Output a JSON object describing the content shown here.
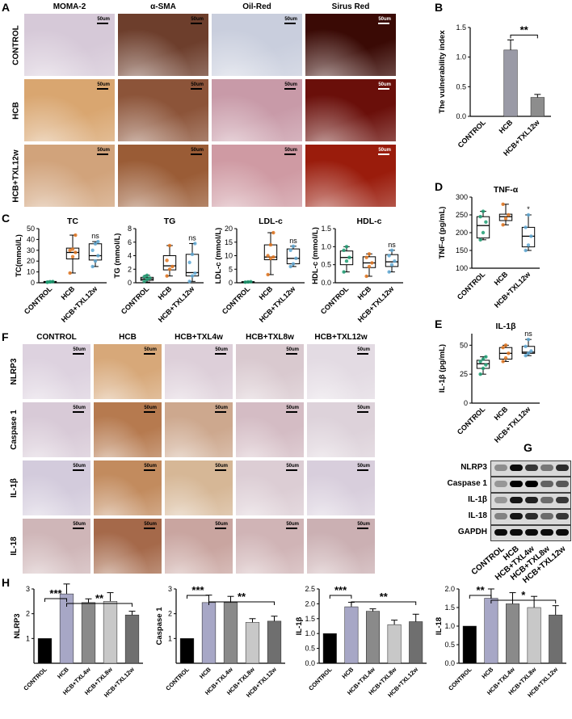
{
  "panels": {
    "A": {
      "label": "A",
      "columns": [
        "MOMA-2",
        "α-SMA",
        "Oil-Red",
        "Sirus Red"
      ],
      "rows": [
        "CONTROL",
        "HCB",
        "HCB+TXL12w"
      ],
      "scale_bar": "50um",
      "tile_colors": [
        [
          "#d6c9d8",
          "#6d3e2c",
          "#c9cedd",
          "#3a0a05"
        ],
        [
          "#d9a670",
          "#8c5439",
          "#c89aa8",
          "#6a0f0a"
        ],
        [
          "#d1a37b",
          "#9a5c36",
          "#cf9aa3",
          "#9a1c0c"
        ]
      ]
    },
    "F": {
      "label": "F",
      "columns": [
        "CONTROL",
        "HCB",
        "HCB+TXL4w",
        "HCB+TXL8w",
        "HCB+TXL12w"
      ],
      "rows": [
        "NLRP3",
        "Caspase 1",
        "IL-1β",
        "IL-18"
      ],
      "scale_bar": "50um",
      "tile_colors": [
        [
          "#ddd2df",
          "#d7a879",
          "#ddcfd9",
          "#d9c9cf",
          "#e3dbe3"
        ],
        [
          "#d8cad7",
          "#b67a4f",
          "#cda88e",
          "#d4bcc4",
          "#ddd2da"
        ],
        [
          "#d3cbdc",
          "#c28b5e",
          "#d6b796",
          "#dccdd4",
          "#d8cedc"
        ],
        [
          "#cfb6b8",
          "#a5694a",
          "#c9a5a0",
          "#d0b4b6",
          "#cbb0b3"
        ]
      ]
    },
    "G": {
      "label": "G",
      "bands": [
        "NLRP3",
        "Caspase 1",
        "IL-1β",
        "IL-18",
        "GAPDH"
      ],
      "lanes": [
        "CONTROL",
        "HCB",
        "HCB+TXL4w",
        "HCB+TXL8w",
        "HCB+TXL12w"
      ],
      "intensity": [
        [
          0.35,
          0.95,
          0.75,
          0.45,
          0.8
        ],
        [
          0.3,
          1.0,
          1.0,
          0.55,
          0.6
        ],
        [
          0.3,
          0.9,
          0.85,
          0.5,
          0.75
        ],
        [
          0.4,
          0.9,
          0.8,
          0.5,
          0.75
        ],
        [
          0.95,
          0.95,
          0.95,
          0.95,
          0.95
        ]
      ]
    },
    "B": {
      "label": "B"
    },
    "C": {
      "label": "C"
    },
    "D": {
      "label": "D"
    },
    "E": {
      "label": "E"
    },
    "H": {
      "label": "H"
    }
  },
  "colors": {
    "control": "#1f9e73",
    "hcb": "#e0741f",
    "txl": "#5fa8d3",
    "gray_bar": "#a8a8b8",
    "gray_bar_dark": "#8d8d8d",
    "box_mid": "#ffffff",
    "sig": "#000000"
  },
  "chart_data": [
    {
      "id": "B",
      "type": "bar",
      "categories": [
        "CONTROL",
        "HCB",
        "HCB+TXL12w"
      ],
      "values": [
        0,
        1.12,
        0.32
      ],
      "errors": [
        0,
        0.17,
        0.05
      ],
      "ylabel": "The vulnerability index",
      "ylim": [
        0,
        1.5
      ],
      "yticks": [
        0.0,
        0.5,
        1.0,
        1.5
      ],
      "significance": [
        {
          "from": 1,
          "to": 2,
          "label": "**"
        }
      ],
      "grid": false
    },
    {
      "id": "C-TC",
      "type": "box",
      "title": "TC",
      "categories": [
        "CONTROL",
        "HCB",
        "HCB+TXL12w"
      ],
      "boxes": [
        {
          "min": 0.2,
          "q1": 0.4,
          "median": 0.8,
          "q3": 1.2,
          "max": 1.6
        },
        {
          "min": 9,
          "q1": 22,
          "median": 28,
          "q3": 32,
          "max": 44
        },
        {
          "min": 15,
          "q1": 21,
          "median": 25,
          "q3": 36,
          "max": 38
        }
      ],
      "points": [
        [
          0.5,
          0.9,
          1.1,
          0.4,
          0.8
        ],
        [
          9,
          24,
          28,
          30,
          31,
          44
        ],
        [
          15,
          20,
          25,
          30,
          36,
          38
        ]
      ],
      "ylabel": "TC(mmol/L)",
      "ylim": [
        0,
        50
      ],
      "yticks": [
        0,
        10,
        20,
        30,
        40,
        50
      ],
      "significance": [
        {
          "over": 2,
          "label": "ns"
        }
      ]
    },
    {
      "id": "C-TG",
      "type": "box",
      "title": "TG",
      "categories": [
        "CONTROL",
        "HCB",
        "HCB+TXL12w"
      ],
      "boxes": [
        {
          "min": 0.1,
          "q1": 0.35,
          "median": 0.55,
          "q3": 0.8,
          "max": 1.1
        },
        {
          "min": 1.0,
          "q1": 1.9,
          "median": 2.5,
          "q3": 4.0,
          "max": 5.5
        },
        {
          "min": 0.2,
          "q1": 1.0,
          "median": 1.5,
          "q3": 4.2,
          "max": 5.8
        }
      ],
      "points": [
        [
          0.2,
          0.5,
          0.7,
          0.9,
          1.1
        ],
        [
          1.0,
          2.0,
          2.4,
          3.3,
          5.5
        ],
        [
          0.2,
          1.0,
          1.4,
          3.0,
          4.2,
          5.8
        ]
      ],
      "ylabel": "TG  (mmol/L)",
      "ylim": [
        0,
        8
      ],
      "yticks": [
        0,
        2,
        4,
        6,
        8
      ],
      "significance": [
        {
          "over": 2,
          "label": "ns"
        }
      ]
    },
    {
      "id": "C-LDL",
      "type": "box",
      "title": "LDL-c",
      "categories": [
        "CONTROL",
        "HCB",
        "HCB+TXL12w"
      ],
      "boxes": [
        {
          "min": 0.1,
          "q1": 0.2,
          "median": 0.3,
          "q3": 0.4,
          "max": 0.5
        },
        {
          "min": 3,
          "q1": 8.5,
          "median": 9.5,
          "q3": 14,
          "max": 18.5
        },
        {
          "min": 6,
          "q1": 7,
          "median": 9,
          "q3": 12.5,
          "max": 13.5
        }
      ],
      "points": [
        [
          0.2,
          0.3,
          0.4
        ],
        [
          3,
          9,
          9.5,
          10,
          14,
          18.5
        ],
        [
          6,
          7,
          9,
          12,
          13.5
        ]
      ],
      "ylabel": "LDL-c  (mmol/L)",
      "ylim": [
        0,
        20
      ],
      "yticks": [
        0,
        5,
        10,
        15,
        20
      ],
      "significance": [
        {
          "over": 2,
          "label": "ns"
        }
      ]
    },
    {
      "id": "C-HDL",
      "type": "box",
      "title": "HDL-c",
      "categories": [
        "CONTROL",
        "HCB",
        "HCB+TXL12w"
      ],
      "boxes": [
        {
          "min": 0.3,
          "q1": 0.5,
          "median": 0.7,
          "q3": 0.88,
          "max": 1.0
        },
        {
          "min": 0.18,
          "q1": 0.42,
          "median": 0.55,
          "q3": 0.72,
          "max": 0.8
        },
        {
          "min": 0.3,
          "q1": 0.45,
          "median": 0.58,
          "q3": 0.78,
          "max": 0.9
        }
      ],
      "points": [
        [
          0.3,
          0.6,
          0.7,
          0.9,
          1.0
        ],
        [
          0.18,
          0.45,
          0.55,
          0.7,
          0.8
        ],
        [
          0.3,
          0.5,
          0.6,
          0.75,
          0.9
        ]
      ],
      "ylabel": "HDL-c  (mmol/L)",
      "ylim": [
        0,
        1.5
      ],
      "yticks": [
        0.0,
        0.5,
        1.0,
        1.5
      ],
      "significance": [
        {
          "over": 2,
          "label": "ns"
        }
      ]
    },
    {
      "id": "D",
      "type": "box",
      "title": "TNF-α",
      "categories": [
        "CONTROL",
        "HCB",
        "HCB+TXL12w"
      ],
      "boxes": [
        {
          "min": 180,
          "q1": 185,
          "median": 220,
          "q3": 245,
          "max": 260
        },
        {
          "min": 222,
          "q1": 234,
          "median": 245,
          "q3": 252,
          "max": 280
        },
        {
          "min": 150,
          "q1": 160,
          "median": 190,
          "q3": 215,
          "max": 250
        }
      ],
      "points": [
        [
          180,
          200,
          230,
          245,
          260
        ],
        [
          222,
          240,
          250,
          280
        ],
        [
          150,
          165,
          190,
          215,
          250
        ]
      ],
      "ylabel": "TNF-α  (pg/mL)",
      "ylim": [
        100,
        300
      ],
      "yticks": [
        100,
        150,
        200,
        250,
        300
      ],
      "significance": [
        {
          "over": 2,
          "label": "*"
        }
      ]
    },
    {
      "id": "E",
      "type": "box",
      "title": "IL-1β",
      "categories": [
        "CONTROL",
        "HCB",
        "HCB+TXL12w"
      ],
      "boxes": [
        {
          "min": 25,
          "q1": 30,
          "median": 34,
          "q3": 37,
          "max": 40
        },
        {
          "min": 36,
          "q1": 38,
          "median": 43,
          "q3": 48,
          "max": 50
        },
        {
          "min": 41,
          "q1": 43,
          "median": 44,
          "q3": 49,
          "max": 55
        }
      ],
      "points": [
        [
          25,
          30,
          33,
          36,
          38,
          40
        ],
        [
          36,
          39,
          43,
          48,
          50
        ],
        [
          41,
          43,
          45,
          49,
          55
        ]
      ],
      "ylabel": "IL-1β  (pg/mL)",
      "ylim": [
        0,
        60
      ],
      "yticks": [
        0,
        25,
        50
      ],
      "significance": [
        {
          "over": 2,
          "label": "ns"
        }
      ]
    },
    {
      "id": "H-NLRP3",
      "type": "bar",
      "categories": [
        "CONTROL",
        "HCB",
        "HCB+TXL4w",
        "HCB+TXL8w",
        "HCB+TXL12w"
      ],
      "values": [
        1.0,
        2.8,
        2.45,
        2.5,
        1.95
      ],
      "errors": [
        0,
        0.4,
        0.15,
        0.35,
        0.15
      ],
      "ylabel": "NLRP3",
      "ylim": [
        0,
        3
      ],
      "yticks": [
        1,
        2,
        3
      ],
      "significance": [
        {
          "from": 0,
          "to": 1,
          "label": "***"
        },
        {
          "from": 1,
          "to": 4,
          "label": "**"
        }
      ]
    },
    {
      "id": "H-Caspase1",
      "type": "bar",
      "categories": [
        "CONTROL",
        "HCB",
        "HCB+TXL4w",
        "HCB+TXL8w",
        "HCB+TXL12w"
      ],
      "values": [
        1.0,
        2.45,
        2.45,
        1.65,
        1.7
      ],
      "errors": [
        0,
        0.3,
        0.25,
        0.15,
        0.2
      ],
      "ylabel": "Caspase 1",
      "ylim": [
        0,
        3
      ],
      "yticks": [
        1,
        2,
        3
      ],
      "significance": [
        {
          "from": 0,
          "to": 1,
          "label": "***"
        },
        {
          "from": 1,
          "to": 4,
          "label": "**"
        }
      ]
    },
    {
      "id": "H-IL1b",
      "type": "bar",
      "categories": [
        "CONTROL",
        "HCB",
        "HCB+TXL4w",
        "HCB+TXL8w",
        "HCB+TXL12w"
      ],
      "values": [
        1.0,
        1.9,
        1.75,
        1.3,
        1.4
      ],
      "errors": [
        0,
        0.15,
        0.08,
        0.15,
        0.25
      ],
      "ylabel": "IL-1β",
      "ylim": [
        0,
        2.5
      ],
      "yticks": [
        0,
        0.5,
        1.0,
        1.5,
        2.0,
        2.5
      ],
      "significance": [
        {
          "from": 0,
          "to": 1,
          "label": "***"
        },
        {
          "from": 1,
          "to": 4,
          "label": "**"
        }
      ]
    },
    {
      "id": "H-IL18",
      "type": "bar",
      "categories": [
        "CONTROL",
        "HCB",
        "HCB+TXL4w",
        "HCB+TXL8w",
        "HCB+TXL12w"
      ],
      "values": [
        1.0,
        1.75,
        1.6,
        1.5,
        1.3
      ],
      "errors": [
        0,
        0.25,
        0.3,
        0.3,
        0.25
      ],
      "ylabel": "IL-18",
      "ylim": [
        0,
        2.0
      ],
      "yticks": [
        0,
        0.5,
        1.0,
        1.5,
        2.0
      ],
      "significance": [
        {
          "from": 0,
          "to": 1,
          "label": "**"
        },
        {
          "from": 1,
          "to": 4,
          "label": "*"
        }
      ]
    }
  ]
}
